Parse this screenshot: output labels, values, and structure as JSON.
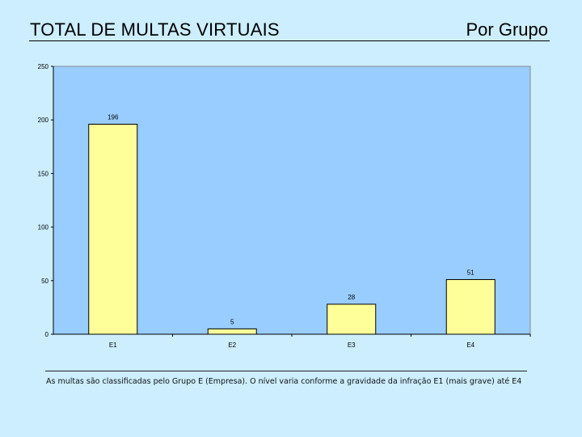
{
  "header": {
    "title": "TOTAL DE MULTAS VIRTUAIS",
    "subtitle": "Por Grupo"
  },
  "footer": {
    "note": "As multas são classificadas pelo Grupo E (Empresa). O nível varia conforme a gravidade da infração E1 (mais grave) até E4"
  },
  "colors": {
    "plot_background": "#99ccff",
    "bar_fill": "#ffff99",
    "bar_stroke": "#000000"
  },
  "chart_data": {
    "type": "bar",
    "categories": [
      "E1",
      "E2",
      "E3",
      "E4"
    ],
    "values": [
      196,
      5,
      28,
      51
    ],
    "data_labels": [
      "196",
      "5",
      "28",
      "51"
    ],
    "title": "",
    "xlabel": "",
    "ylabel": "",
    "ylim": [
      0,
      250
    ],
    "yticks": [
      0,
      50,
      100,
      150,
      200,
      250
    ],
    "grid": false,
    "legend": false
  }
}
